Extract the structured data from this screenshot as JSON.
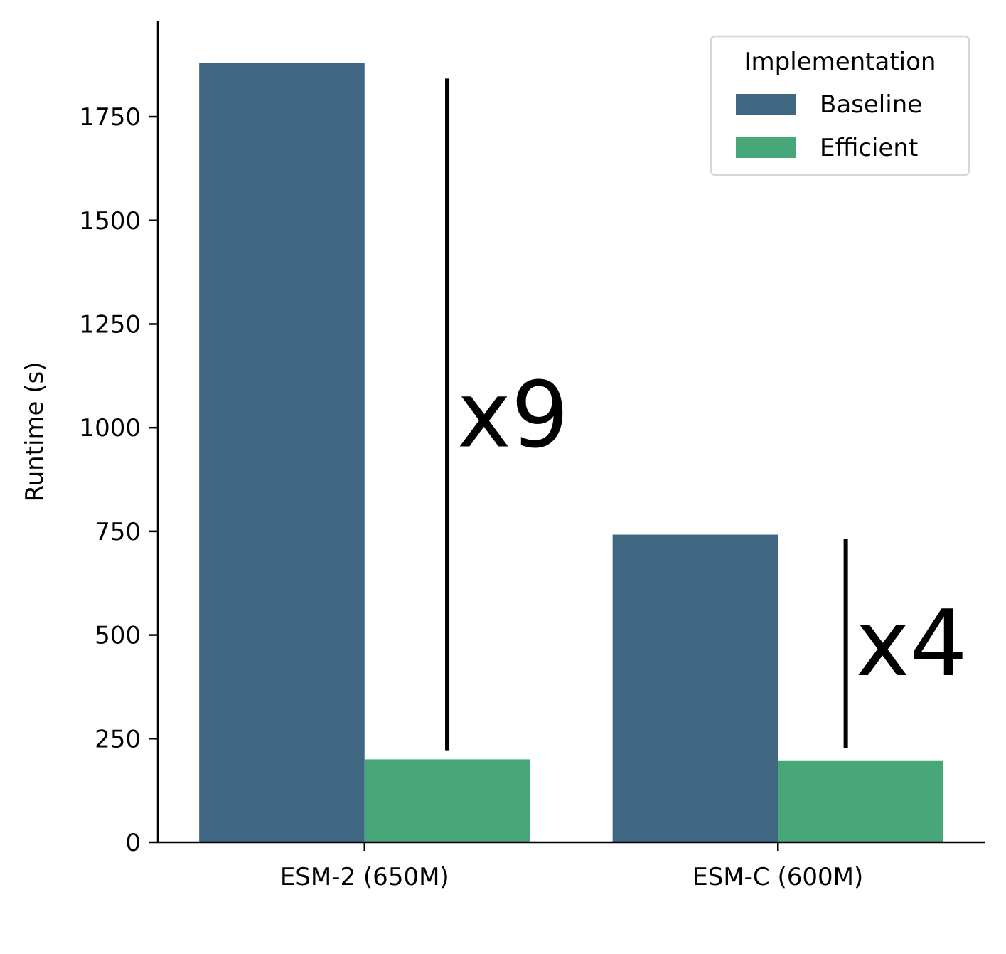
{
  "chart_data": {
    "type": "bar",
    "categories": [
      "ESM-2 (650M)",
      "ESM-C (600M)"
    ],
    "series": [
      {
        "name": "Baseline",
        "color": "#3f6782",
        "values": [
          1880,
          742
        ]
      },
      {
        "name": "Efficient",
        "color": "#48a779",
        "values": [
          200,
          196
        ]
      }
    ],
    "title": "",
    "xlabel": "",
    "ylabel": "Runtime (s)",
    "ylim": [
      0,
      1980
    ],
    "yticks": [
      0,
      250,
      500,
      750,
      1000,
      1250,
      1500,
      1750
    ],
    "grid": false,
    "legend": {
      "title": "Implementation",
      "placement": "top-right"
    },
    "annotations": [
      {
        "category": 0,
        "label": "x9",
        "from": 222,
        "to": 1842
      },
      {
        "category": 1,
        "label": "x4",
        "from": 228,
        "to": 732
      }
    ]
  }
}
